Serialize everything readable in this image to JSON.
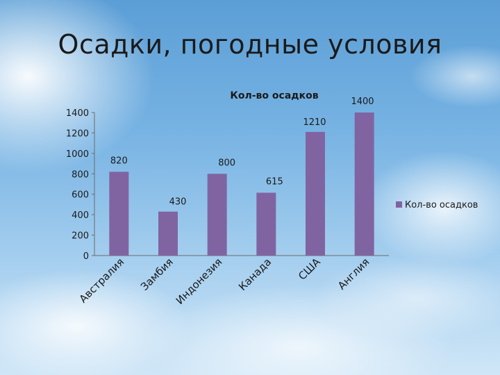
{
  "slide": {
    "title": "Осадки, погодные условия"
  },
  "chart_data": {
    "type": "bar",
    "title": "Кол-во осадков",
    "categories": [
      "Австралия",
      "Замбия",
      "Индонезия",
      "Канада",
      "США",
      "Англия"
    ],
    "series": [
      {
        "name": "Кол-во осадков",
        "values": [
          820,
          430,
          800,
          615,
          1210,
          1400
        ],
        "color": "#8064a2"
      }
    ],
    "data_labels": [
      "820",
      "430",
      "800",
      "615",
      "1210",
      "1400"
    ],
    "y_ticks": [
      0,
      200,
      400,
      600,
      800,
      1000,
      1200,
      1400
    ],
    "ylim": [
      0,
      1400
    ],
    "legend": "right",
    "grid": false
  }
}
